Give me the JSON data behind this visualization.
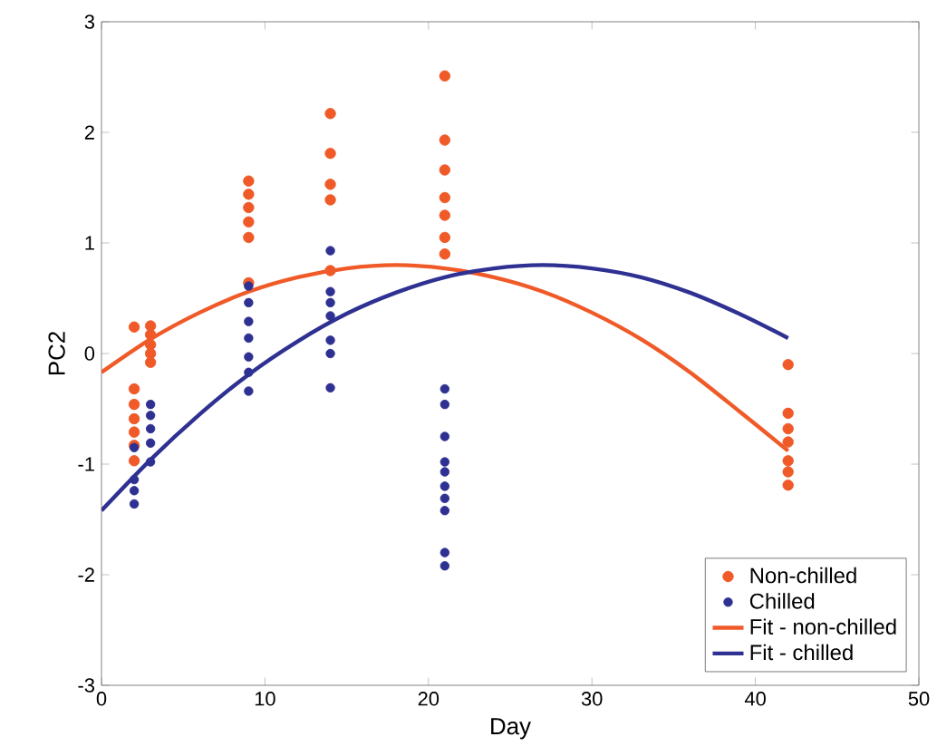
{
  "chart_data": {
    "type": "scatter",
    "xlabel": "Day",
    "ylabel": "PC2",
    "xlim": [
      0,
      50
    ],
    "ylim": [
      -3,
      3
    ],
    "xticks": [
      0,
      10,
      20,
      30,
      40,
      50
    ],
    "yticks": [
      -3,
      -2,
      -1,
      0,
      1,
      2,
      3
    ],
    "legend": "bottom right",
    "grid": false,
    "series": [
      {
        "name": "Non-chilled",
        "color": "#f05a28",
        "marker": "circle",
        "x": [
          2,
          2,
          2,
          2,
          2,
          2,
          2,
          3,
          3,
          3,
          3,
          3,
          9,
          9,
          9,
          9,
          9,
          9,
          14,
          14,
          14,
          14,
          14,
          21,
          21,
          21,
          21,
          21,
          21,
          21,
          42,
          42,
          42,
          42,
          42,
          42,
          42
        ],
        "values": [
          0.24,
          -0.32,
          -0.46,
          -0.59,
          -0.71,
          -0.83,
          -0.97,
          0.25,
          0.17,
          0.08,
          0,
          -0.08,
          1.56,
          1.44,
          1.32,
          1.19,
          1.05,
          0.64,
          2.17,
          1.81,
          1.53,
          1.39,
          0.75,
          2.51,
          1.93,
          1.66,
          1.41,
          1.25,
          1.05,
          0.9,
          -0.1,
          -0.54,
          -0.68,
          -0.8,
          -0.97,
          -1.07,
          -1.19
        ]
      },
      {
        "name": "Chilled",
        "color": "#2e3192",
        "marker": "circle",
        "x": [
          2,
          2,
          2,
          2,
          3,
          3,
          3,
          3,
          3,
          9,
          9,
          9,
          9,
          9,
          9,
          9,
          14,
          14,
          14,
          14,
          14,
          14,
          14,
          21,
          21,
          21,
          21,
          21,
          21,
          21,
          21,
          21,
          21
        ],
        "values": [
          -0.85,
          -1.14,
          -1.24,
          -1.36,
          -0.46,
          -0.56,
          -0.68,
          -0.81,
          -0.98,
          0.61,
          0.46,
          0.29,
          0.14,
          -0.03,
          -0.17,
          -0.34,
          0.93,
          0.56,
          0.46,
          0.34,
          0.12,
          0,
          -0.31,
          -0.32,
          -0.46,
          -0.75,
          -0.98,
          -1.07,
          -1.2,
          -1.31,
          -1.42,
          -1.8,
          -1.92
        ]
      },
      {
        "name": "Fit - non-chilled",
        "type": "line",
        "marker": "none",
        "color": "#f05a28",
        "x": [
          0,
          3,
          6,
          9,
          12,
          15,
          18,
          21,
          24,
          27,
          30,
          33,
          36,
          39,
          42
        ],
        "values": [
          -0.17,
          0.13,
          0.37,
          0.56,
          0.69,
          0.77,
          0.8,
          0.77,
          0.69,
          0.56,
          0.37,
          0.13,
          -0.17,
          -0.52,
          -0.88
        ]
      },
      {
        "name": "Fit - chilled",
        "type": "line",
        "marker": "none",
        "color": "#2e3192",
        "x": [
          0,
          3,
          6,
          9,
          12,
          15,
          18,
          21,
          24,
          27,
          30,
          33,
          36,
          39,
          42
        ],
        "values": [
          -1.42,
          -0.96,
          -0.55,
          -0.19,
          0.11,
          0.36,
          0.55,
          0.69,
          0.77,
          0.8,
          0.77,
          0.69,
          0.55,
          0.36,
          0.14
        ]
      }
    ]
  }
}
